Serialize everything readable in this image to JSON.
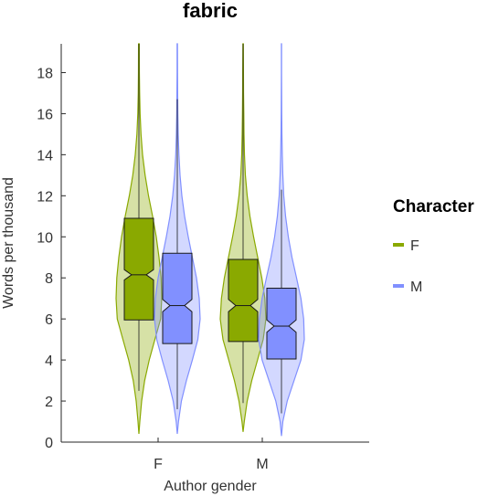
{
  "chart_data": {
    "type": "violin",
    "title": "fabric",
    "xlabel": "Author gender",
    "ylabel": "Words per thousand",
    "ylim": [
      0,
      19.4
    ],
    "yticks": [
      0,
      2,
      4,
      6,
      8,
      10,
      12,
      14,
      16,
      18
    ],
    "categories": [
      "F",
      "M"
    ],
    "legend": {
      "title": "Character",
      "position": "right"
    },
    "series": [
      {
        "name": "F",
        "color": "#8aa900",
        "groups": [
          {
            "category": "F",
            "q1": 5.95,
            "median": 8.15,
            "q3": 10.9,
            "notch_low": 7.9,
            "notch_high": 8.4,
            "whisker_low": 2.5,
            "whisker_high": 19.4,
            "density_y": [
              0.4,
              1,
              2,
              3,
              4,
              5,
              6,
              7,
              8,
              9,
              10,
              11,
              12,
              13,
              14,
              15,
              16,
              17,
              18,
              19.4
            ],
            "density_w": [
              0,
              0.04,
              0.12,
              0.25,
              0.45,
              0.7,
              0.95,
              1.0,
              0.97,
              0.88,
              0.76,
              0.6,
              0.42,
              0.27,
              0.16,
              0.09,
              0.05,
              0.03,
              0.02,
              0.015
            ]
          },
          {
            "category": "M",
            "q1": 4.9,
            "median": 6.65,
            "q3": 8.9,
            "notch_low": 6.35,
            "notch_high": 6.95,
            "whisker_low": 1.9,
            "whisker_high": 19.4,
            "density_y": [
              0.5,
              1,
              2,
              3,
              4,
              5,
              6,
              7,
              8,
              9,
              10,
              11,
              12,
              13,
              14,
              15,
              16,
              17,
              18,
              19.4
            ],
            "density_w": [
              0,
              0.05,
              0.18,
              0.38,
              0.63,
              0.88,
              1.0,
              0.95,
              0.82,
              0.64,
              0.46,
              0.3,
              0.18,
              0.1,
              0.06,
              0.04,
              0.03,
              0.02,
              0.015,
              0.01
            ]
          }
        ]
      },
      {
        "name": "M",
        "color": "#8190ff",
        "groups": [
          {
            "category": "F",
            "q1": 4.8,
            "median": 6.65,
            "q3": 9.2,
            "notch_low": 6.35,
            "notch_high": 6.95,
            "whisker_low": 1.6,
            "whisker_high": 16.7,
            "density_y": [
              0.4,
              1,
              2,
              3,
              4,
              5,
              6,
              7,
              8,
              9,
              10,
              11,
              12,
              13,
              14,
              15,
              16,
              17,
              18,
              19.4
            ],
            "density_w": [
              0,
              0.05,
              0.18,
              0.4,
              0.66,
              0.9,
              1.0,
              0.96,
              0.84,
              0.66,
              0.48,
              0.32,
              0.2,
              0.12,
              0.07,
              0.04,
              0.025,
              0.015,
              0.01,
              0.008
            ]
          },
          {
            "category": "M",
            "q1": 4.05,
            "median": 5.65,
            "q3": 7.5,
            "notch_low": 5.35,
            "notch_high": 5.95,
            "whisker_low": 1.4,
            "whisker_high": 12.3,
            "density_y": [
              0.3,
              1,
              2,
              3,
              4,
              5,
              6,
              7,
              8,
              9,
              10,
              11,
              12,
              13,
              14,
              15,
              16,
              17,
              18,
              19.4
            ],
            "density_w": [
              0,
              0.06,
              0.25,
              0.55,
              0.85,
              1.0,
              0.97,
              0.85,
              0.66,
              0.46,
              0.3,
              0.18,
              0.1,
              0.06,
              0.035,
              0.02,
              0.012,
              0.008,
              0.005,
              0.003
            ]
          }
        ]
      }
    ]
  }
}
